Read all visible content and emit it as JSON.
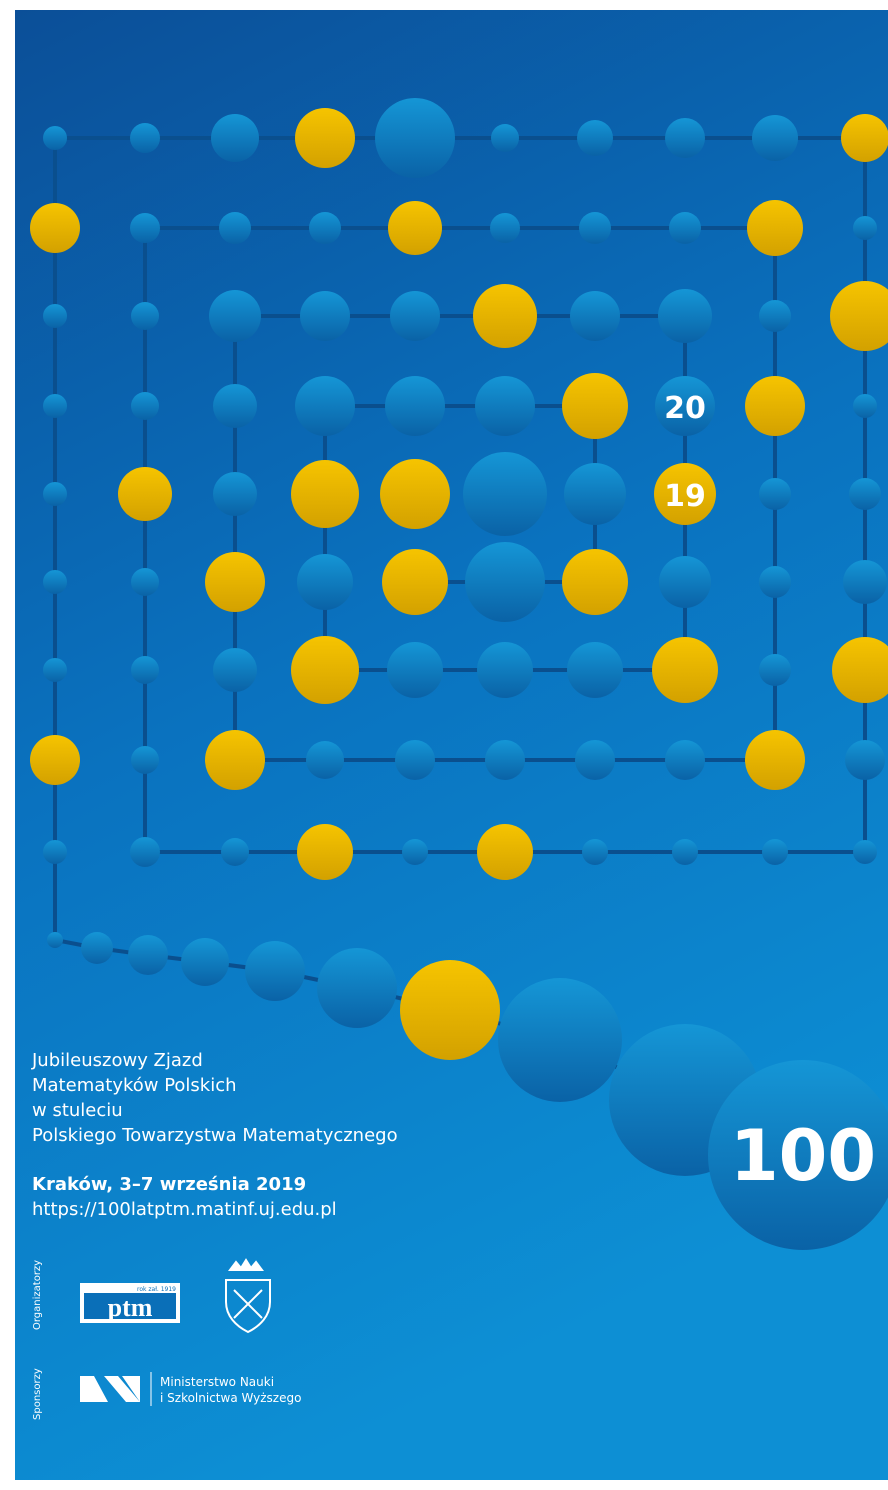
{
  "poster": {
    "badge_top": "20",
    "badge_bottom": "19",
    "big_number": "100",
    "title_lines": [
      "Jubileuszowy Zjazd",
      "Matematyków Polskich",
      "w stuleciu",
      "Polskiego Towarzystwa Matematycznego"
    ],
    "place_date": "Kraków, 3–7 września 2019",
    "url": "https://100latptm.matinf.uj.edu.pl",
    "organizers_label": "Organizatorzy",
    "ptm_logo": "ptm",
    "ptm_founded": "rok zał. 1919",
    "sponsors_label": "Sponsorzy",
    "ministry_lines": [
      "Ministerstwo Nauki",
      "i Szkolnictwa Wyższego"
    ]
  }
}
